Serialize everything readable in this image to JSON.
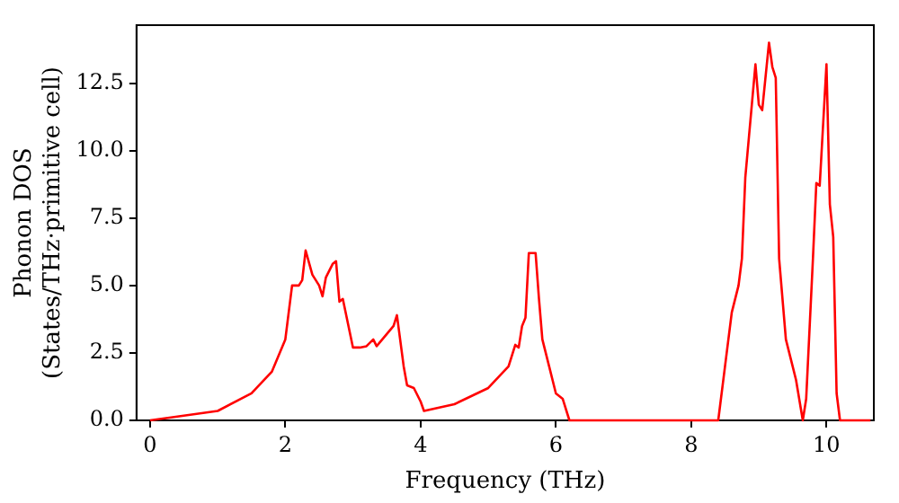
{
  "chart_data": {
    "type": "line",
    "xlabel": "Frequency (THz)",
    "ylabel": "Phonon DOS\n(States/THz·primitive cell)",
    "x": [
      0,
      1,
      1.5,
      1.8,
      2.0,
      2.1,
      2.2,
      2.25,
      2.3,
      2.4,
      2.5,
      2.55,
      2.6,
      2.7,
      2.75,
      2.8,
      2.85,
      3.0,
      3.1,
      3.2,
      3.3,
      3.35,
      3.5,
      3.6,
      3.65,
      3.75,
      3.8,
      3.9,
      4.0,
      4.05,
      4.5,
      5.0,
      5.3,
      5.4,
      5.45,
      5.5,
      5.55,
      5.6,
      5.7,
      5.75,
      5.8,
      5.9,
      6.0,
      6.1,
      6.2,
      8.4,
      8.5,
      8.6,
      8.7,
      8.75,
      8.8,
      8.95,
      9.0,
      9.05,
      9.15,
      9.2,
      9.25,
      9.3,
      9.4,
      9.5,
      9.55,
      9.65,
      9.7,
      9.8,
      9.85,
      9.9,
      10.0,
      10.05,
      10.1,
      10.15,
      10.2,
      10.65
    ],
    "series": [
      {
        "color": "#ff0000",
        "values": [
          0,
          0.35,
          1.0,
          1.8,
          3.0,
          5.0,
          5.0,
          5.2,
          6.3,
          5.4,
          5.0,
          4.6,
          5.3,
          5.8,
          5.9,
          4.4,
          4.5,
          2.7,
          2.7,
          2.75,
          3.0,
          2.75,
          3.2,
          3.5,
          3.9,
          2.0,
          1.3,
          1.2,
          0.7,
          0.35,
          0.6,
          1.2,
          2.0,
          2.8,
          2.7,
          3.5,
          3.8,
          6.2,
          6.2,
          4.5,
          3.0,
          2.0,
          1.0,
          0.8,
          0,
          0,
          2.0,
          4.0,
          5.0,
          6.0,
          9.0,
          13.2,
          11.7,
          11.5,
          14.0,
          13.1,
          12.7,
          6.0,
          3.0,
          2.0,
          1.5,
          0,
          0.8,
          6.0,
          8.8,
          8.7,
          13.2,
          8.0,
          6.8,
          1.0,
          0,
          0
        ]
      }
    ],
    "xlim": [
      -0.2,
      10.7
    ],
    "xticks": [
      0,
      2,
      4,
      6,
      8,
      10
    ],
    "ylim": [
      0,
      14.65
    ],
    "yticks": [
      {
        "value": 0,
        "label": "0.0"
      },
      {
        "value": 2.5,
        "label": "2.5"
      },
      {
        "value": 5,
        "label": "5.0"
      },
      {
        "value": 7.5,
        "label": "7.5"
      },
      {
        "value": 10,
        "label": "10.0"
      },
      {
        "value": 12.5,
        "label": "12.5"
      }
    ],
    "grid": false,
    "legend": false,
    "marker": "none",
    "line_style": "solid"
  }
}
